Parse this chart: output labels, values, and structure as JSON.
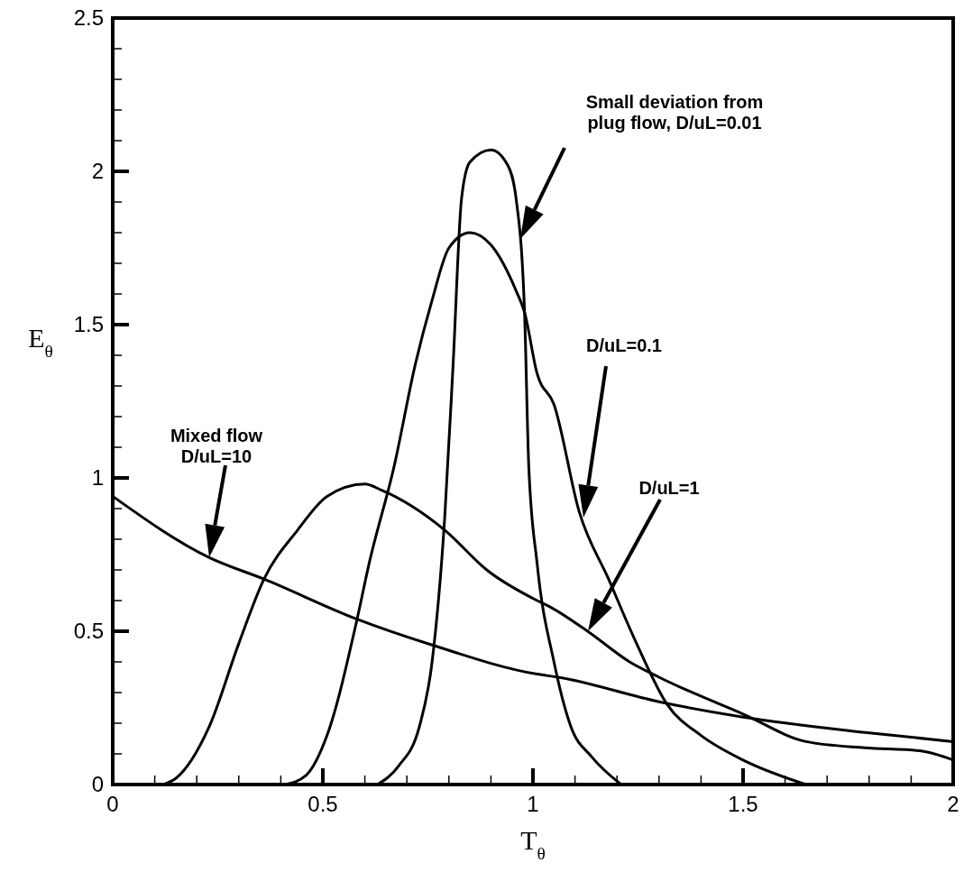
{
  "chart_data": {
    "type": "line",
    "xlabel": "T$_{θ}$",
    "ylabel": "E$_{θ}$",
    "xlim": [
      0,
      2
    ],
    "ylim": [
      0,
      2.5
    ],
    "line_style": "solid",
    "marker": "none",
    "grid": false,
    "xticks": [
      0,
      {
        "value": 0.1,
        "label": null
      },
      {
        "value": 0.2,
        "label": null
      },
      {
        "value": 0.3,
        "label": null
      },
      {
        "value": 0.4,
        "label": null
      },
      0.5,
      {
        "value": 0.6,
        "label": null
      },
      {
        "value": 0.7,
        "label": null
      },
      {
        "value": 0.8,
        "label": null
      },
      {
        "value": 0.9,
        "label": null
      },
      1,
      {
        "value": 1.1,
        "label": null
      },
      {
        "value": 1.2,
        "label": null
      },
      {
        "value": 1.3,
        "label": null
      },
      {
        "value": 1.4,
        "label": null
      },
      1.5,
      {
        "value": 1.6,
        "label": null
      },
      {
        "value": 1.7,
        "label": null
      },
      {
        "value": 1.8,
        "label": null
      },
      {
        "value": 1.9,
        "label": null
      },
      2
    ],
    "yticks": [
      0,
      {
        "value": 0.1,
        "label": null
      },
      {
        "value": 0.2,
        "label": null
      },
      {
        "value": 0.3,
        "label": null
      },
      {
        "value": 0.4,
        "label": null
      },
      0.5,
      {
        "value": 0.6,
        "label": null
      },
      {
        "value": 0.7,
        "label": null
      },
      {
        "value": 0.8,
        "label": null
      },
      {
        "value": 0.9,
        "label": null
      },
      1,
      {
        "value": 1.1,
        "label": null
      },
      {
        "value": 1.2,
        "label": null
      },
      {
        "value": 1.3,
        "label": null
      },
      {
        "value": 1.4,
        "label": null
      },
      1.5,
      {
        "value": 1.6,
        "label": null
      },
      {
        "value": 1.7,
        "label": null
      },
      {
        "value": 1.8,
        "label": null
      },
      {
        "value": 1.9,
        "label": null
      },
      2,
      {
        "value": 2.1,
        "label": null
      },
      {
        "value": 2.2,
        "label": null
      },
      {
        "value": 2.3,
        "label": null
      },
      {
        "value": 2.4,
        "label": null
      },
      2.5
    ],
    "series": [
      {
        "color": "#000000",
        "x": [
          0,
          0.23,
          0.36,
          0.58,
          0.76,
          1.01,
          1.06,
          1.3,
          1.5,
          1.79,
          2
        ],
        "values": [
          0.94,
          0.74,
          0.67,
          0.54,
          0.455,
          0.36,
          0.35,
          0.27,
          0.22,
          0.17,
          0.14
        ]
      },
      {
        "color": "#000000",
        "x": [
          0.12,
          0.15,
          0.23,
          0.3,
          0.36,
          0.44,
          0.51,
          0.6,
          0.64,
          0.79,
          0.89,
          1.01,
          1.04,
          1.13,
          1.23,
          1.3,
          1.5,
          1.65,
          1.79,
          1.92,
          2
        ],
        "values": [
          0,
          0.02,
          0.19,
          0.46,
          0.67,
          0.83,
          0.94,
          0.98,
          0.96,
          0.83,
          0.7,
          0.6,
          0.58,
          0.5,
          0.4,
          0.35,
          0.23,
          0.14,
          0.12,
          0.11,
          0.08
        ]
      },
      {
        "color": "#000000",
        "x": [
          0.41,
          0.46,
          0.51,
          0.58,
          0.61,
          0.67,
          0.72,
          0.76,
          0.8,
          0.85,
          0.9,
          0.96,
          0.98,
          1.01,
          1.05,
          1.11,
          1.18,
          1.24,
          1.32,
          1.4,
          1.5,
          1.65
        ],
        "values": [
          0,
          0.03,
          0.16,
          0.53,
          0.72,
          1.04,
          1.37,
          1.58,
          1.75,
          1.8,
          1.76,
          1.61,
          1.54,
          1.34,
          1.24,
          0.89,
          0.67,
          0.48,
          0.26,
          0.16,
          0.08,
          0
        ]
      },
      {
        "color": "#000000",
        "x": [
          0.63,
          0.68,
          0.73,
          0.76,
          0.79,
          0.81,
          0.83,
          0.85,
          0.9,
          0.94,
          0.96,
          0.98,
          0.99,
          1.01,
          1.05,
          1.09,
          1.14,
          1.21
        ],
        "values": [
          0,
          0.06,
          0.19,
          0.4,
          0.87,
          1.37,
          1.91,
          2.03,
          2.07,
          2.02,
          1.91,
          1.54,
          1.04,
          0.72,
          0.4,
          0.19,
          0.09,
          0
        ]
      }
    ],
    "annotations": [
      "Mixed flow\nD/uL=10",
      "Small deviation from\nplug flow, D/uL=0.01",
      "D/uL=0.1",
      "D/uL=1"
    ]
  }
}
